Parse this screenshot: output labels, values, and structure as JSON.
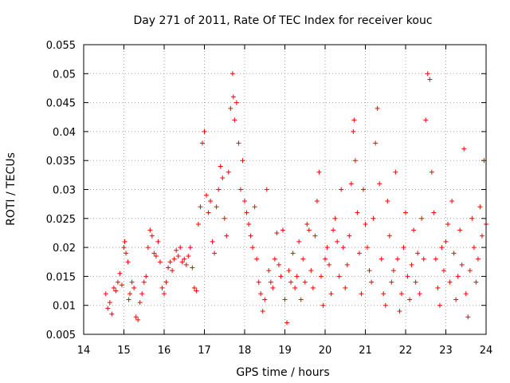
{
  "chart_data": {
    "type": "scatter",
    "title": "Day 271 of 2011, Rate Of TEC Index for receiver kouc",
    "xlabel": "GPS time / hours",
    "ylabel": "ROTI / TECUs",
    "xlim": [
      14,
      24
    ],
    "ylim": [
      0.005,
      0.055
    ],
    "x_ticks": [
      "14",
      "15",
      "16",
      "17",
      "18",
      "19",
      "20",
      "21",
      "22",
      "23",
      "24"
    ],
    "y_ticks": [
      "0.005",
      "0.01",
      "0.015",
      "0.02",
      "0.025",
      "0.03",
      "0.035",
      "0.04",
      "0.045",
      "0.05",
      "0.055"
    ],
    "grid": true,
    "marker": "+",
    "color": "#ff0000",
    "series": [
      {
        "name": "ROTI",
        "points": [
          [
            14.55,
            0.012
          ],
          [
            14.6,
            0.0095
          ],
          [
            14.65,
            0.0105
          ],
          [
            14.7,
            0.0085
          ],
          [
            14.75,
            0.013
          ],
          [
            14.8,
            0.0125
          ],
          [
            14.85,
            0.014
          ],
          [
            14.9,
            0.0155
          ],
          [
            14.95,
            0.0135
          ],
          [
            15.0,
            0.02
          ],
          [
            15.02,
            0.021
          ],
          [
            15.05,
            0.019
          ],
          [
            15.1,
            0.0175
          ],
          [
            15.12,
            0.011
          ],
          [
            15.15,
            0.012
          ],
          [
            15.2,
            0.014
          ],
          [
            15.25,
            0.013
          ],
          [
            15.3,
            0.008
          ],
          [
            15.35,
            0.0075
          ],
          [
            15.4,
            0.0105
          ],
          [
            15.45,
            0.012
          ],
          [
            15.5,
            0.014
          ],
          [
            15.55,
            0.015
          ],
          [
            15.6,
            0.02
          ],
          [
            15.65,
            0.023
          ],
          [
            15.7,
            0.022
          ],
          [
            15.75,
            0.019
          ],
          [
            15.8,
            0.0185
          ],
          [
            15.85,
            0.021
          ],
          [
            15.9,
            0.0175
          ],
          [
            15.95,
            0.013
          ],
          [
            16.0,
            0.012
          ],
          [
            16.05,
            0.014
          ],
          [
            16.1,
            0.0165
          ],
          [
            16.15,
            0.0175
          ],
          [
            16.2,
            0.016
          ],
          [
            16.25,
            0.018
          ],
          [
            16.3,
            0.0195
          ],
          [
            16.35,
            0.0185
          ],
          [
            16.4,
            0.02
          ],
          [
            16.45,
            0.0175
          ],
          [
            16.5,
            0.018
          ],
          [
            16.55,
            0.017
          ],
          [
            16.6,
            0.0185
          ],
          [
            16.65,
            0.02
          ],
          [
            16.7,
            0.0165
          ],
          [
            16.75,
            0.013
          ],
          [
            16.8,
            0.0125
          ],
          [
            16.85,
            0.024
          ],
          [
            16.9,
            0.027
          ],
          [
            16.95,
            0.038
          ],
          [
            17.0,
            0.04
          ],
          [
            17.05,
            0.029
          ],
          [
            17.1,
            0.026
          ],
          [
            17.15,
            0.028
          ],
          [
            17.2,
            0.021
          ],
          [
            17.25,
            0.019
          ],
          [
            17.3,
            0.027
          ],
          [
            17.35,
            0.03
          ],
          [
            17.4,
            0.034
          ],
          [
            17.45,
            0.032
          ],
          [
            17.5,
            0.025
          ],
          [
            17.55,
            0.022
          ],
          [
            17.6,
            0.033
          ],
          [
            17.65,
            0.044
          ],
          [
            17.7,
            0.05
          ],
          [
            17.72,
            0.046
          ],
          [
            17.75,
            0.042
          ],
          [
            17.8,
            0.045
          ],
          [
            17.85,
            0.038
          ],
          [
            17.9,
            0.03
          ],
          [
            17.95,
            0.035
          ],
          [
            18.0,
            0.028
          ],
          [
            18.05,
            0.026
          ],
          [
            18.1,
            0.024
          ],
          [
            18.15,
            0.022
          ],
          [
            18.2,
            0.02
          ],
          [
            18.25,
            0.027
          ],
          [
            18.3,
            0.018
          ],
          [
            18.35,
            0.014
          ],
          [
            18.4,
            0.012
          ],
          [
            18.45,
            0.009
          ],
          [
            18.5,
            0.011
          ],
          [
            18.55,
            0.03
          ],
          [
            18.6,
            0.016
          ],
          [
            18.65,
            0.014
          ],
          [
            18.7,
            0.013
          ],
          [
            18.75,
            0.018
          ],
          [
            18.8,
            0.0225
          ],
          [
            18.85,
            0.017
          ],
          [
            18.9,
            0.015
          ],
          [
            18.95,
            0.023
          ],
          [
            19.0,
            0.011
          ],
          [
            19.05,
            0.007
          ],
          [
            19.1,
            0.016
          ],
          [
            19.15,
            0.014
          ],
          [
            19.2,
            0.019
          ],
          [
            19.25,
            0.013
          ],
          [
            19.3,
            0.015
          ],
          [
            19.35,
            0.021
          ],
          [
            19.4,
            0.011
          ],
          [
            19.45,
            0.018
          ],
          [
            19.5,
            0.014
          ],
          [
            19.55,
            0.024
          ],
          [
            19.6,
            0.023
          ],
          [
            19.65,
            0.016
          ],
          [
            19.7,
            0.013
          ],
          [
            19.75,
            0.022
          ],
          [
            19.8,
            0.028
          ],
          [
            19.85,
            0.033
          ],
          [
            19.9,
            0.015
          ],
          [
            19.95,
            0.01
          ],
          [
            20.0,
            0.018
          ],
          [
            20.05,
            0.02
          ],
          [
            20.1,
            0.017
          ],
          [
            20.15,
            0.012
          ],
          [
            20.2,
            0.023
          ],
          [
            20.25,
            0.025
          ],
          [
            20.3,
            0.021
          ],
          [
            20.35,
            0.015
          ],
          [
            20.4,
            0.03
          ],
          [
            20.45,
            0.02
          ],
          [
            20.5,
            0.013
          ],
          [
            20.55,
            0.017
          ],
          [
            20.6,
            0.022
          ],
          [
            20.65,
            0.031
          ],
          [
            20.7,
            0.04
          ],
          [
            20.72,
            0.042
          ],
          [
            20.75,
            0.035
          ],
          [
            20.8,
            0.026
          ],
          [
            20.85,
            0.019
          ],
          [
            20.9,
            0.012
          ],
          [
            20.95,
            0.03
          ],
          [
            21.0,
            0.024
          ],
          [
            21.05,
            0.02
          ],
          [
            21.1,
            0.016
          ],
          [
            21.15,
            0.014
          ],
          [
            21.2,
            0.025
          ],
          [
            21.25,
            0.038
          ],
          [
            21.3,
            0.044
          ],
          [
            21.35,
            0.031
          ],
          [
            21.4,
            0.018
          ],
          [
            21.45,
            0.012
          ],
          [
            21.5,
            0.01
          ],
          [
            21.55,
            0.028
          ],
          [
            21.6,
            0.022
          ],
          [
            21.65,
            0.014
          ],
          [
            21.7,
            0.016
          ],
          [
            21.75,
            0.033
          ],
          [
            21.8,
            0.018
          ],
          [
            21.85,
            0.009
          ],
          [
            21.9,
            0.012
          ],
          [
            21.95,
            0.02
          ],
          [
            22.0,
            0.026
          ],
          [
            22.05,
            0.015
          ],
          [
            22.1,
            0.011
          ],
          [
            22.15,
            0.017
          ],
          [
            22.2,
            0.023
          ],
          [
            22.25,
            0.014
          ],
          [
            22.3,
            0.019
          ],
          [
            22.35,
            0.012
          ],
          [
            22.4,
            0.025
          ],
          [
            22.45,
            0.018
          ],
          [
            22.5,
            0.042
          ],
          [
            22.55,
            0.05
          ],
          [
            22.6,
            0.049
          ],
          [
            22.65,
            0.033
          ],
          [
            22.7,
            0.026
          ],
          [
            22.75,
            0.018
          ],
          [
            22.8,
            0.013
          ],
          [
            22.85,
            0.01
          ],
          [
            22.9,
            0.02
          ],
          [
            22.95,
            0.016
          ],
          [
            23.0,
            0.021
          ],
          [
            23.05,
            0.024
          ],
          [
            23.1,
            0.014
          ],
          [
            23.15,
            0.028
          ],
          [
            23.2,
            0.019
          ],
          [
            23.25,
            0.011
          ],
          [
            23.3,
            0.015
          ],
          [
            23.35,
            0.023
          ],
          [
            23.4,
            0.017
          ],
          [
            23.45,
            0.037
          ],
          [
            23.5,
            0.012
          ],
          [
            23.55,
            0.008
          ],
          [
            23.6,
            0.016
          ],
          [
            23.65,
            0.025
          ],
          [
            23.7,
            0.02
          ],
          [
            23.75,
            0.014
          ],
          [
            23.8,
            0.018
          ],
          [
            23.85,
            0.027
          ],
          [
            23.9,
            0.022
          ],
          [
            23.95,
            0.035
          ],
          [
            24.0,
            0.024
          ]
        ]
      }
    ]
  }
}
